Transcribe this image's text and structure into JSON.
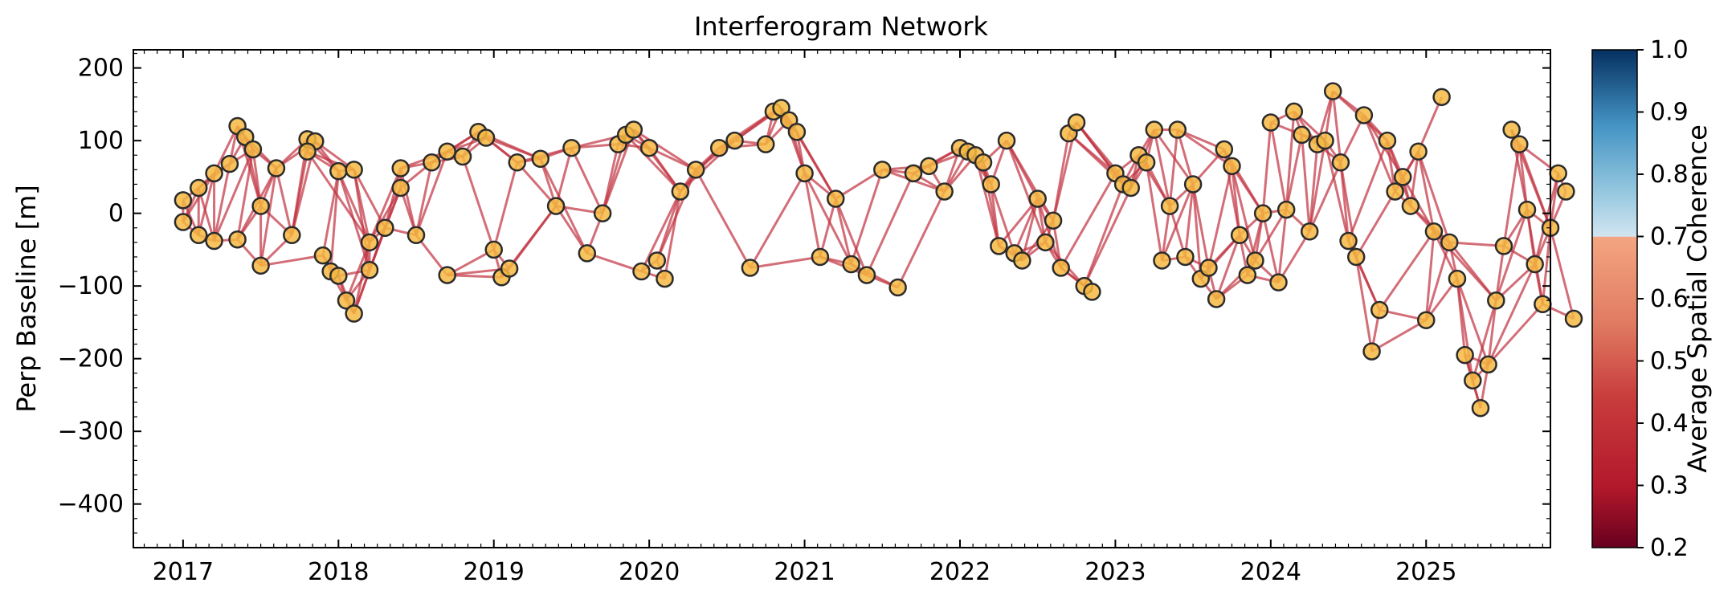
{
  "chart_data": {
    "type": "scatter",
    "title": "Interferogram Network",
    "xlabel": "",
    "ylabel": "Perp Baseline [m]",
    "xlim": [
      2016.68,
      2025.8
    ],
    "ylim": [
      -460,
      225
    ],
    "x_ticks": [
      "2017",
      "2018",
      "2019",
      "2020",
      "2021",
      "2022",
      "2023",
      "2024",
      "2025"
    ],
    "y_ticks": [
      "200",
      "100",
      "0",
      "−100",
      "−200",
      "−300",
      "−400"
    ],
    "grid": false,
    "colorbar": {
      "label": "Average Spatial Coherence",
      "range": [
        0.2,
        1.0
      ],
      "ticks": [
        "1.0",
        "0.9",
        "0.8",
        "0.7",
        "0.6",
        "0.5",
        "0.4",
        "0.3",
        "0.2"
      ],
      "colormap": "RdBu"
    },
    "marker": {
      "fill": "#f5b942",
      "edge": "#2b2b2b"
    },
    "edge_color": "#c0303e",
    "acquisitions": [
      [
        2017.0,
        18
      ],
      [
        2017.0,
        -12
      ],
      [
        2017.1,
        -30
      ],
      [
        2017.1,
        35
      ],
      [
        2017.2,
        55
      ],
      [
        2017.2,
        -38
      ],
      [
        2017.3,
        68
      ],
      [
        2017.35,
        120
      ],
      [
        2017.4,
        105
      ],
      [
        2017.45,
        88
      ],
      [
        2017.35,
        -36
      ],
      [
        2017.5,
        10
      ],
      [
        2017.5,
        -72
      ],
      [
        2017.6,
        62
      ],
      [
        2017.7,
        -30
      ],
      [
        2017.8,
        102
      ],
      [
        2017.85,
        99
      ],
      [
        2017.8,
        85
      ],
      [
        2017.9,
        -58
      ],
      [
        2017.95,
        -80
      ],
      [
        2018.0,
        -86
      ],
      [
        2018.0,
        58
      ],
      [
        2018.05,
        -120
      ],
      [
        2018.1,
        -138
      ],
      [
        2018.1,
        60
      ],
      [
        2018.2,
        -78
      ],
      [
        2018.2,
        -40
      ],
      [
        2018.3,
        -20
      ],
      [
        2018.4,
        35
      ],
      [
        2018.4,
        62
      ],
      [
        2018.5,
        -30
      ],
      [
        2018.6,
        70
      ],
      [
        2018.7,
        -85
      ],
      [
        2018.7,
        85
      ],
      [
        2018.8,
        78
      ],
      [
        2018.9,
        112
      ],
      [
        2018.95,
        104
      ],
      [
        2019.0,
        -50
      ],
      [
        2019.05,
        -88
      ],
      [
        2019.1,
        -76
      ],
      [
        2019.15,
        70
      ],
      [
        2019.3,
        75
      ],
      [
        2019.4,
        10
      ],
      [
        2019.5,
        90
      ],
      [
        2019.6,
        -55
      ],
      [
        2019.7,
        0
      ],
      [
        2019.8,
        95
      ],
      [
        2019.85,
        108
      ],
      [
        2019.9,
        115
      ],
      [
        2019.95,
        -80
      ],
      [
        2020.0,
        90
      ],
      [
        2020.05,
        -65
      ],
      [
        2020.1,
        -90
      ],
      [
        2020.2,
        30
      ],
      [
        2020.3,
        60
      ],
      [
        2020.45,
        90
      ],
      [
        2020.55,
        100
      ],
      [
        2020.65,
        -75
      ],
      [
        2020.75,
        95
      ],
      [
        2020.8,
        140
      ],
      [
        2020.85,
        145
      ],
      [
        2020.9,
        128
      ],
      [
        2020.95,
        112
      ],
      [
        2021.0,
        55
      ],
      [
        2021.1,
        -60
      ],
      [
        2021.2,
        20
      ],
      [
        2021.3,
        -70
      ],
      [
        2021.4,
        -85
      ],
      [
        2021.5,
        60
      ],
      [
        2021.6,
        -102
      ],
      [
        2021.7,
        55
      ],
      [
        2021.8,
        65
      ],
      [
        2021.9,
        30
      ],
      [
        2022.0,
        90
      ],
      [
        2022.05,
        85
      ],
      [
        2022.1,
        80
      ],
      [
        2022.15,
        70
      ],
      [
        2022.2,
        40
      ],
      [
        2022.25,
        -45
      ],
      [
        2022.3,
        100
      ],
      [
        2022.35,
        -55
      ],
      [
        2022.4,
        -65
      ],
      [
        2022.5,
        20
      ],
      [
        2022.55,
        -40
      ],
      [
        2022.6,
        -10
      ],
      [
        2022.65,
        -75
      ],
      [
        2022.7,
        110
      ],
      [
        2022.75,
        125
      ],
      [
        2022.8,
        -100
      ],
      [
        2022.85,
        -108
      ],
      [
        2023.0,
        55
      ],
      [
        2023.05,
        40
      ],
      [
        2023.1,
        35
      ],
      [
        2023.15,
        80
      ],
      [
        2023.2,
        70
      ],
      [
        2023.25,
        115
      ],
      [
        2023.3,
        -65
      ],
      [
        2023.35,
        10
      ],
      [
        2023.4,
        115
      ],
      [
        2023.45,
        -60
      ],
      [
        2023.5,
        40
      ],
      [
        2023.55,
        -90
      ],
      [
        2023.6,
        -75
      ],
      [
        2023.65,
        -118
      ],
      [
        2023.7,
        88
      ],
      [
        2023.75,
        65
      ],
      [
        2023.8,
        -30
      ],
      [
        2023.85,
        -85
      ],
      [
        2023.9,
        -65
      ],
      [
        2023.95,
        0
      ],
      [
        2024.0,
        125
      ],
      [
        2024.05,
        -95
      ],
      [
        2024.1,
        5
      ],
      [
        2024.15,
        140
      ],
      [
        2024.2,
        108
      ],
      [
        2024.25,
        -25
      ],
      [
        2024.3,
        95
      ],
      [
        2024.35,
        100
      ],
      [
        2024.4,
        168
      ],
      [
        2024.45,
        70
      ],
      [
        2024.5,
        -38
      ],
      [
        2024.55,
        -60
      ],
      [
        2024.6,
        135
      ],
      [
        2024.65,
        -190
      ],
      [
        2024.7,
        -133
      ],
      [
        2024.75,
        100
      ],
      [
        2024.8,
        30
      ],
      [
        2024.85,
        50
      ],
      [
        2024.9,
        10
      ],
      [
        2024.95,
        85
      ],
      [
        2025.0,
        -147
      ],
      [
        2025.05,
        -25
      ],
      [
        2025.1,
        160
      ],
      [
        2025.15,
        -40
      ],
      [
        2025.2,
        -90
      ],
      [
        2025.25,
        -195
      ],
      [
        2025.3,
        -230
      ],
      [
        2025.35,
        -268
      ],
      [
        2025.4,
        -208
      ],
      [
        2025.45,
        -120
      ],
      [
        2025.5,
        -45
      ],
      [
        2025.55,
        115
      ],
      [
        2025.6,
        95
      ],
      [
        2025.65,
        5
      ],
      [
        2025.7,
        -70
      ],
      [
        2025.75,
        -125
      ],
      [
        2025.8,
        -20
      ],
      [
        2025.85,
        55
      ],
      [
        2025.9,
        30
      ],
      [
        2025.95,
        -145
      ]
    ],
    "interferogram_pairs_note": ""
  }
}
